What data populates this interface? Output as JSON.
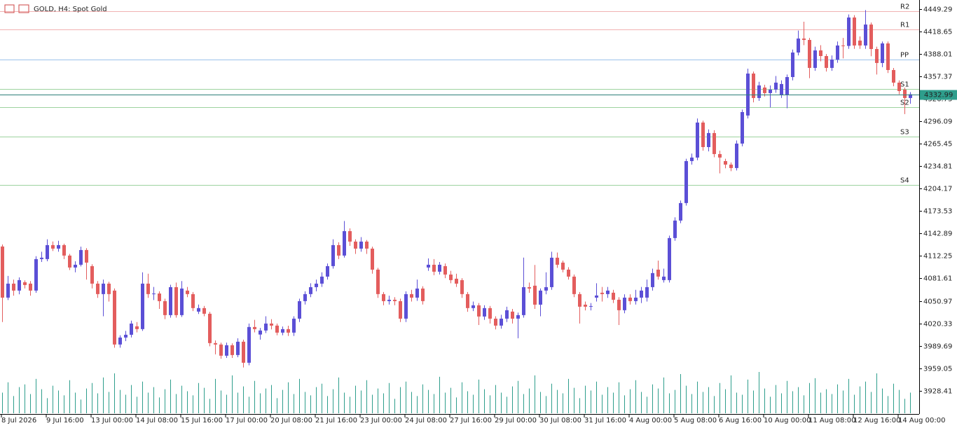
{
  "chart_data": {
    "type": "candlestick",
    "title": "GOLD, H4:  Spot Gold",
    "bull_color": "#5b4fd6",
    "bear_color": "#e35d5d",
    "volume_color": "#2e9e8c",
    "ylim": [
      3897.5,
      4461.7
    ],
    "yticks": [
      4449.29,
      4418.65,
      4388.01,
      4357.37,
      4326.73,
      4296.09,
      4265.45,
      4234.81,
      4204.17,
      4173.53,
      4142.89,
      4112.25,
      4081.61,
      4050.97,
      4020.33,
      3989.69,
      3959.05,
      3928.41
    ],
    "volume_lim": [
      0,
      600
    ],
    "levels": [
      {
        "name": "R2",
        "value": 4446.4,
        "color": "#e57373"
      },
      {
        "name": "R1",
        "value": 4421.6,
        "color": "#e57373"
      },
      {
        "name": "PP",
        "value": 4380.5,
        "color": "#4a90d9"
      },
      {
        "name": "S1",
        "value": 4340.3,
        "color": "#4caf50"
      },
      {
        "name": "S2",
        "value": 4315.5,
        "color": "#4caf50"
      },
      {
        "name": "S3",
        "value": 4275.3,
        "color": "#4caf50"
      },
      {
        "name": "S4",
        "value": 4209.3,
        "color": "#4caf50"
      }
    ],
    "categories": [
      "8 Jul 2026",
      null,
      null,
      null,
      null,
      null,
      null,
      null,
      "9 Jul 16:00",
      null,
      null,
      null,
      null,
      null,
      null,
      null,
      "13 Jul 00:00",
      null,
      null,
      null,
      null,
      null,
      null,
      null,
      "14 Jul 08:00",
      null,
      null,
      null,
      null,
      null,
      null,
      null,
      "15 Jul 16:00",
      null,
      null,
      null,
      null,
      null,
      null,
      null,
      "17 Jul 00:00",
      null,
      null,
      null,
      null,
      null,
      null,
      null,
      "20 Jul 08:00",
      null,
      null,
      null,
      null,
      null,
      null,
      null,
      "21 Jul 16:00",
      null,
      null,
      null,
      null,
      null,
      null,
      null,
      "23 Jul 00:00",
      null,
      null,
      null,
      null,
      null,
      null,
      null,
      "24 Jul 08:00",
      null,
      null,
      null,
      null,
      null,
      null,
      null,
      "27 Jul 16:00",
      null,
      null,
      null,
      null,
      null,
      null,
      null,
      "29 Jul 00:00",
      null,
      null,
      null,
      null,
      null,
      null,
      null,
      "30 Jul 08:00",
      null,
      null,
      null,
      null,
      null,
      null,
      null,
      "31 Jul 16:00",
      null,
      null,
      null,
      null,
      null,
      null,
      null,
      "4 Aug 00:00",
      null,
      null,
      null,
      null,
      null,
      null,
      null,
      "5 Aug 08:00",
      null,
      null,
      null,
      null,
      null,
      null,
      null,
      "6 Aug 16:00",
      null,
      null,
      null,
      null,
      null,
      null,
      null,
      "10 Aug 00:00",
      null,
      null,
      null,
      null,
      null,
      null,
      null,
      "11 Aug 08:00",
      null,
      null,
      null,
      null,
      null,
      null,
      null,
      "12 Aug 16:00",
      null,
      null,
      null,
      null,
      null,
      null,
      null,
      "14 Aug 00:00",
      null,
      null
    ],
    "ohlc": [
      [
        4125.2,
        4128.0,
        4022.0,
        4055.4
      ],
      [
        4055.4,
        4085.0,
        4052.0,
        4074.5
      ],
      [
        4074.5,
        4080.0,
        4058.0,
        4065.0
      ],
      [
        4065.0,
        4083.0,
        4060.0,
        4079.3
      ],
      [
        4076.4,
        4079.0,
        4068.0,
        4072.6
      ],
      [
        4074.5,
        4078.0,
        4058.0,
        4065.0
      ],
      [
        4065.0,
        4112.0,
        4062.0,
        4108.0
      ],
      [
        4108.0,
        4118.0,
        4104.0,
        4109.9
      ],
      [
        4108.0,
        4135.0,
        4105.0,
        4127.1
      ],
      [
        4127.1,
        4132.0,
        4119.0,
        4122.3
      ],
      [
        4122.3,
        4133.0,
        4118.0,
        4127.1
      ],
      [
        4127.1,
        4129.0,
        4108.0,
        4112.8
      ],
      [
        4112.8,
        4115.0,
        4093.0,
        4096.5
      ],
      [
        4096.5,
        4105.0,
        4090.0,
        4100.3
      ],
      [
        4100.3,
        4125.0,
        4098.0,
        4120.4
      ],
      [
        4120.4,
        4123.0,
        4080.0,
        4103.2
      ],
      [
        4098.4,
        4101.0,
        4068.0,
        4074.5
      ],
      [
        4074.5,
        4078.0,
        4055.0,
        4060.2
      ],
      [
        4060.2,
        4080.0,
        4030.0,
        4074.5
      ],
      [
        4074.5,
        4077.0,
        4050.0,
        4060.2
      ],
      [
        4065.0,
        4068.0,
        3987.0,
        3991.4
      ],
      [
        3991.4,
        4004.0,
        3987.0,
        4000.9
      ],
      [
        4000.9,
        4010.0,
        3996.0,
        4004.7
      ],
      [
        4004.7,
        4024.0,
        4001.0,
        4020.0
      ],
      [
        4016.2,
        4022.0,
        4008.0,
        4012.4
      ],
      [
        4012.4,
        4090.0,
        4010.0,
        4074.5
      ],
      [
        4074.5,
        4088.0,
        4055.0,
        4060.2
      ],
      [
        4060.2,
        4070.0,
        4052.0,
        4061.0
      ],
      [
        4061.0,
        4064.0,
        4040.0,
        4050.6
      ],
      [
        4050.6,
        4054.0,
        4026.0,
        4031.5
      ],
      [
        4031.5,
        4073.0,
        4028.0,
        4069.7
      ],
      [
        4069.7,
        4076.0,
        4028.0,
        4031.5
      ],
      [
        4031.5,
        4078.0,
        4029.0,
        4067.8
      ],
      [
        4065.0,
        4070.0,
        4056.0,
        4060.2
      ],
      [
        4060.2,
        4063.0,
        4037.0,
        4041.1
      ],
      [
        4036.3,
        4046.0,
        4033.0,
        4041.1
      ],
      [
        4041.1,
        4044.0,
        4030.0,
        4033.4
      ],
      [
        4033.4,
        4036.0,
        3989.0,
        3993.3
      ],
      [
        3993.3,
        3997.0,
        3978.0,
        3991.4
      ],
      [
        3991.4,
        3994.0,
        3972.0,
        3976.1
      ],
      [
        3976.1,
        3994.0,
        3973.0,
        3990.4
      ],
      [
        3990.4,
        3993.0,
        3973.0,
        3977.0
      ],
      [
        3977.0,
        4000.0,
        3974.0,
        3995.2
      ],
      [
        3995.2,
        3998.0,
        3960.0,
        3966.5
      ],
      [
        3966.5,
        4020.0,
        3963.0,
        4015.3
      ],
      [
        4015.3,
        4025.0,
        4008.0,
        4012.4
      ],
      [
        4005.0,
        4014.0,
        3998.0,
        4010.5
      ],
      [
        4010.5,
        4030.0,
        4007.0,
        4020.0
      ],
      [
        4020.0,
        4026.0,
        4012.0,
        4017.2
      ],
      [
        4017.2,
        4020.0,
        4004.0,
        4007.6
      ],
      [
        4007.6,
        4016.0,
        4004.0,
        4012.4
      ],
      [
        4012.4,
        4017.0,
        4003.0,
        4007.6
      ],
      [
        4007.6,
        4030.0,
        4003.0,
        4026.7
      ],
      [
        4026.7,
        4054.0,
        4022.0,
        4050.6
      ],
      [
        4050.6,
        4064.0,
        4046.0,
        4060.2
      ],
      [
        4060.2,
        4075.0,
        4056.0,
        4069.7
      ],
      [
        4069.7,
        4080.0,
        4064.0,
        4074.5
      ],
      [
        4074.5,
        4090.0,
        4070.0,
        4084.1
      ],
      [
        4084.1,
        4102.0,
        4080.0,
        4098.4
      ],
      [
        4098.4,
        4135.0,
        4095.0,
        4127.1
      ],
      [
        4127.1,
        4131.0,
        4108.0,
        4112.8
      ],
      [
        4112.8,
        4160.0,
        4110.0,
        4146.2
      ],
      [
        4146.2,
        4150.0,
        4126.0,
        4131.9
      ],
      [
        4131.9,
        4135.0,
        4115.0,
        4122.3
      ],
      [
        4122.3,
        4138.0,
        4118.0,
        4131.9
      ],
      [
        4131.9,
        4134.0,
        4115.0,
        4122.3
      ],
      [
        4122.3,
        4125.0,
        4088.0,
        4093.6
      ],
      [
        4093.6,
        4096.0,
        4055.0,
        4060.2
      ],
      [
        4060.2,
        4063.0,
        4045.0,
        4050.6
      ],
      [
        4050.6,
        4058.0,
        4046.0,
        4052.5
      ],
      [
        4052.5,
        4056.0,
        4045.0,
        4050.6
      ],
      [
        4050.6,
        4054.0,
        4022.0,
        4026.7
      ],
      [
        4026.7,
        4064.0,
        4022.0,
        4060.2
      ],
      [
        4060.2,
        4066.0,
        4050.0,
        4055.4
      ],
      [
        4055.4,
        4080.0,
        4051.0,
        4067.8
      ],
      [
        4067.8,
        4071.0,
        4046.0,
        4050.6
      ],
      [
        4096.5,
        4109.0,
        4092.0,
        4100.3
      ],
      [
        4100.3,
        4108.0,
        4086.0,
        4090.8
      ],
      [
        4090.8,
        4104.0,
        4087.0,
        4100.3
      ],
      [
        4098.4,
        4102.0,
        4082.0,
        4086.9
      ],
      [
        4086.9,
        4092.0,
        4075.0,
        4079.3
      ],
      [
        4081.2,
        4088.0,
        4070.0,
        4074.5
      ],
      [
        4079.3,
        4082.0,
        4055.0,
        4060.2
      ],
      [
        4060.2,
        4063.0,
        4036.0,
        4041.1
      ],
      [
        4041.1,
        4050.0,
        4037.0,
        4044.9
      ],
      [
        4044.9,
        4048.0,
        4018.0,
        4029.6
      ],
      [
        4029.6,
        4045.0,
        4025.0,
        4041.1
      ],
      [
        4041.1,
        4044.0,
        4020.0,
        4026.7
      ],
      [
        4026.7,
        4030.0,
        4012.0,
        4017.2
      ],
      [
        4017.2,
        4032.0,
        4013.0,
        4026.7
      ],
      [
        4026.7,
        4043.0,
        4022.0,
        4038.2
      ],
      [
        4036.3,
        4040.0,
        4020.0,
        4026.7
      ],
      [
        4026.7,
        4035.0,
        4000.0,
        4031.5
      ],
      [
        4031.5,
        4110.0,
        4028.0,
        4069.7
      ],
      [
        4069.7,
        4076.0,
        4062.0,
        4067.8
      ],
      [
        4071.7,
        4100.0,
        4040.0,
        4045.8
      ],
      [
        4045.8,
        4068.0,
        4030.0,
        4065.0
      ],
      [
        4065.0,
        4090.0,
        4060.0,
        4069.7
      ],
      [
        4069.7,
        4118.0,
        4066.0,
        4109.9
      ],
      [
        4109.9,
        4117.0,
        4096.0,
        4100.3
      ],
      [
        4103.2,
        4106.0,
        4090.0,
        4093.6
      ],
      [
        4093.6,
        4097.0,
        4080.0,
        4084.1
      ],
      [
        4084.1,
        4087.0,
        4056.0,
        4060.2
      ],
      [
        4060.2,
        4063.0,
        4020.0,
        4043.0
      ],
      [
        4045.8,
        4050.0,
        4038.0,
        4043.0
      ],
      [
        4043.0,
        4048.0,
        4038.0,
        4043.9
      ],
      [
        4055.4,
        4075.0,
        4050.0,
        4058.3
      ],
      [
        4062.1,
        4070.0,
        4050.0,
        4060.2
      ],
      [
        4060.2,
        4070.0,
        4055.0,
        4065.0
      ],
      [
        4062.1,
        4066.0,
        4048.0,
        4052.5
      ],
      [
        4052.5,
        4056.0,
        4018.0,
        4038.2
      ],
      [
        4038.2,
        4060.0,
        4034.0,
        4055.4
      ],
      [
        4055.4,
        4060.0,
        4046.0,
        4050.6
      ],
      [
        4050.6,
        4066.0,
        4046.0,
        4055.4
      ],
      [
        4055.4,
        4070.0,
        4048.0,
        4065.0
      ],
      [
        4055.4,
        4080.0,
        4050.0,
        4069.7
      ],
      [
        4069.7,
        4095.0,
        4065.0,
        4088.9
      ],
      [
        4093.6,
        4106.0,
        4080.0,
        4084.1
      ],
      [
        4079.3,
        4095.0,
        4076.0,
        4084.1
      ],
      [
        4079.3,
        4140.0,
        4076.0,
        4136.7
      ],
      [
        4136.7,
        4165.0,
        4133.0,
        4160.6
      ],
      [
        4160.6,
        4188.0,
        4157.0,
        4184.5
      ],
      [
        4184.5,
        4245.0,
        4181.0,
        4241.8
      ],
      [
        4241.8,
        4252.0,
        4237.0,
        4246.6
      ],
      [
        4246.6,
        4300.0,
        4243.0,
        4294.4
      ],
      [
        4294.4,
        4297.0,
        4256.0,
        4260.9
      ],
      [
        4260.9,
        4285.0,
        4255.0,
        4280.1
      ],
      [
        4280.1,
        4284.0,
        4247.0,
        4251.4
      ],
      [
        4251.4,
        4256.0,
        4225.0,
        4246.6
      ],
      [
        4241.8,
        4245.0,
        4232.0,
        4237.0
      ],
      [
        4237.0,
        4240.0,
        4228.0,
        4232.3
      ],
      [
        4232.3,
        4270.0,
        4229.0,
        4265.7
      ],
      [
        4265.7,
        4312.0,
        4262.0,
        4308.7
      ],
      [
        4304.0,
        4368.0,
        4300.0,
        4361.3
      ],
      [
        4361.3,
        4364.0,
        4322.0,
        4327.9
      ],
      [
        4327.9,
        4350.0,
        4324.0,
        4345.1
      ],
      [
        4342.2,
        4346.0,
        4330.0,
        4334.6
      ],
      [
        4334.6,
        4345.0,
        4315.0,
        4339.3
      ],
      [
        4339.3,
        4358.0,
        4335.0,
        4348.9
      ],
      [
        4332.6,
        4352.0,
        4328.0,
        4347.0
      ],
      [
        4332.6,
        4360.0,
        4314.0,
        4356.5
      ],
      [
        4356.5,
        4394.0,
        4352.0,
        4390.0
      ],
      [
        4390.0,
        4420.0,
        4386.0,
        4409.1
      ],
      [
        4409.1,
        4432.0,
        4400.0,
        4407.2
      ],
      [
        4407.2,
        4410.0,
        4355.0,
        4369.0
      ],
      [
        4369.0,
        4398.0,
        4365.0,
        4392.9
      ],
      [
        4392.9,
        4400.0,
        4378.0,
        4385.2
      ],
      [
        4385.2,
        4388.0,
        4364.0,
        4369.0
      ],
      [
        4369.0,
        4386.0,
        4365.0,
        4380.4
      ],
      [
        4380.4,
        4405.0,
        4376.0,
        4399.6
      ],
      [
        4399.6,
        4410.0,
        4382.0,
        4399.0
      ],
      [
        4399.0,
        4442.0,
        4395.0,
        4437.8
      ],
      [
        4437.8,
        4441.0,
        4395.0,
        4399.6
      ],
      [
        4406.3,
        4412.0,
        4395.0,
        4399.6
      ],
      [
        4399.6,
        4448.0,
        4395.0,
        4428.2
      ],
      [
        4428.2,
        4431.0,
        4385.0,
        4394.8
      ],
      [
        4394.8,
        4398.0,
        4360.0,
        4375.7
      ],
      [
        4375.7,
        4405.0,
        4370.0,
        4402.4
      ],
      [
        4402.4,
        4405.0,
        4362.0,
        4366.1
      ],
      [
        4366.1,
        4369.0,
        4344.0,
        4348.9
      ],
      [
        4348.9,
        4352.0,
        4333.0,
        4337.4
      ],
      [
        4339.3,
        4342.0,
        4306.0,
        4327.9
      ],
      [
        4327.9,
        4336.0,
        4320.0,
        4332.99
      ]
    ],
    "volumes": [
      30,
      45,
      25,
      38,
      42,
      28,
      50,
      35,
      22,
      40,
      33,
      26,
      48,
      30,
      20,
      36,
      44,
      29,
      52,
      31,
      58,
      34,
      27,
      41,
      24,
      46,
      30,
      38,
      23,
      35,
      49,
      28,
      40,
      32,
      26,
      44,
      37,
      21,
      50,
      33,
      27,
      55,
      30,
      39,
      24,
      47,
      29,
      36,
      41,
      22,
      34,
      45,
      28,
      50,
      31,
      26,
      38,
      43,
      25,
      35,
      52,
      30,
      24,
      40,
      33,
      48,
      27,
      36,
      29,
      44,
      21,
      38,
      46,
      31,
      25,
      42,
      34,
      28,
      53,
      30,
      37,
      23,
      45,
      32,
      27,
      49,
      35,
      26,
      41,
      30,
      24,
      39,
      47,
      28,
      36,
      55,
      31,
      25,
      43,
      34,
      29,
      50,
      37,
      22,
      40,
      33,
      46,
      27,
      38,
      30,
      45,
      26,
      35,
      48,
      31,
      24,
      42,
      36,
      52,
      29,
      34,
      57,
      40,
      28,
      46,
      31,
      38,
      25,
      44,
      35,
      55,
      30,
      27,
      49,
      33,
      60,
      36,
      24,
      41,
      29,
      47,
      32,
      38,
      26,
      44,
      51,
      30,
      35,
      28,
      42,
      33,
      50,
      27,
      39,
      46,
      31,
      58,
      36,
      25,
      43,
      34,
      21,
      30
    ]
  }
}
